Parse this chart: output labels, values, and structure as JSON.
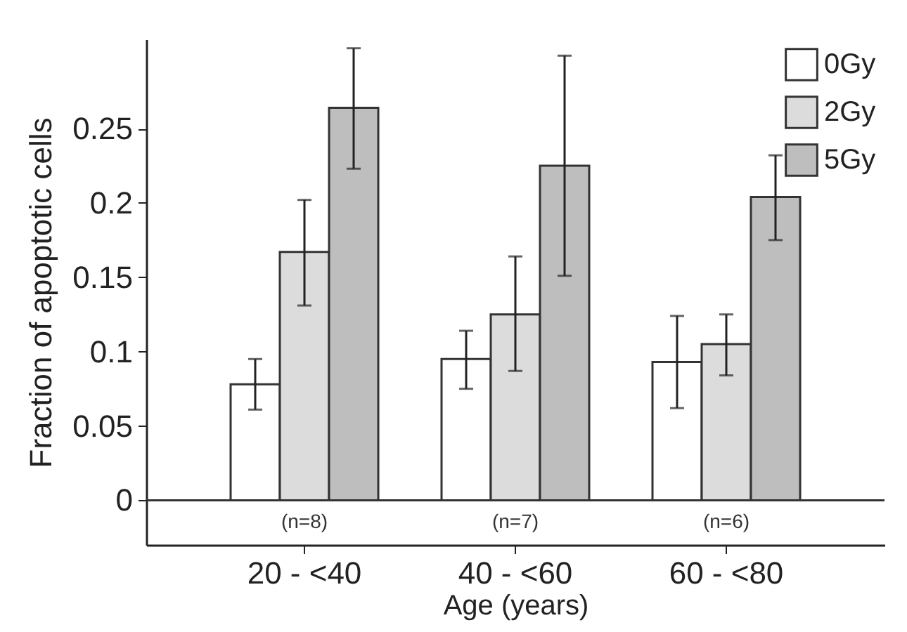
{
  "chart_data": {
    "type": "bar",
    "xlabel": "Age (years)",
    "ylabel": "Fraction of apoptotic cells",
    "categories": [
      "20 - <40",
      "40 - <60",
      "60 - <80"
    ],
    "series": [
      {
        "name": "0Gy",
        "color": "#ffffff",
        "values": [
          0.078,
          0.095,
          0.093
        ],
        "errors": [
          [
            0.061,
            0.095
          ],
          [
            0.075,
            0.114
          ],
          [
            0.062,
            0.124
          ]
        ]
      },
      {
        "name": "2Gy",
        "color": "#dcdcdc",
        "values": [
          0.167,
          0.125,
          0.105
        ],
        "errors": [
          [
            0.131,
            0.202
          ],
          [
            0.087,
            0.164
          ],
          [
            0.084,
            0.125
          ]
        ]
      },
      {
        "name": "5Gy",
        "color": "#bebebe",
        "values": [
          0.264,
          0.225,
          0.204
        ],
        "errors": [
          [
            0.223,
            0.304
          ],
          [
            0.151,
            0.299
          ],
          [
            0.175,
            0.232
          ]
        ]
      }
    ],
    "ylim": [
      -0.03,
      0.31
    ],
    "yticks": [
      0,
      0.05,
      0.1,
      0.15,
      0.2,
      0.25
    ],
    "ref_lines": [
      {
        "axis": "y",
        "value": 0
      }
    ],
    "annotations": [
      "(n=8)",
      "(n=7)",
      "(n=6)"
    ],
    "legend": "top right",
    "grid": false
  }
}
